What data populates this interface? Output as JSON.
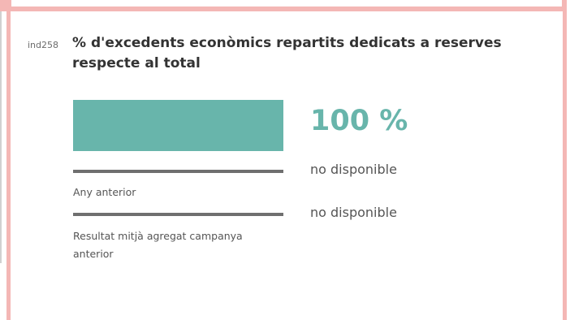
{
  "indicator": {
    "code": "ind258",
    "title": "% d'excedents econòmics repartits dedicats a reserves respecte al total"
  },
  "current": {
    "value_label": "100 %",
    "value_percent": 100
  },
  "previous_year": {
    "label": "Any anterior",
    "value_label": "no disponible"
  },
  "aggregate_previous_campaign": {
    "label": "Resultat mitjà agregat campanya anterior",
    "value_label": "no disponible"
  },
  "colors": {
    "accent": "#68b5ab",
    "frame": "#f4b7b5",
    "reference_line": "#6f6f6f",
    "title_text": "#333333"
  }
}
